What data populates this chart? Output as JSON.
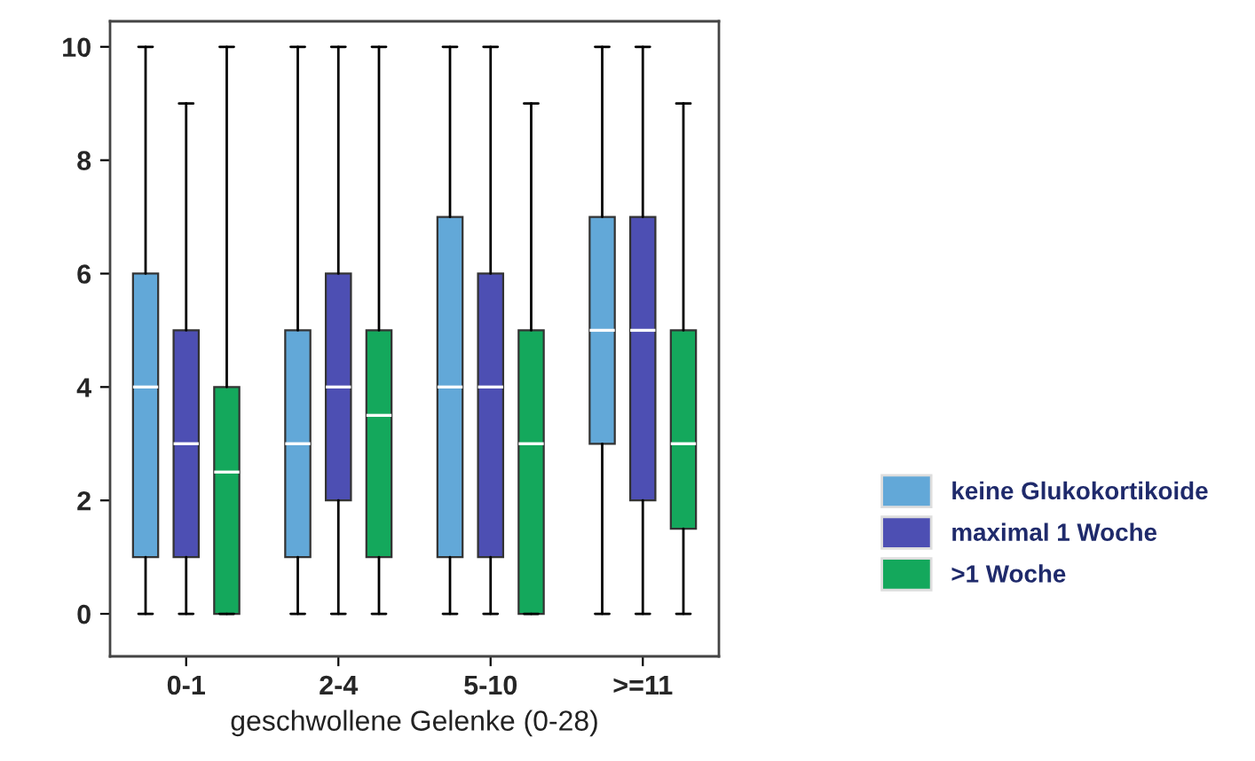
{
  "chart_data": {
    "type": "box",
    "xlabel": "geschwollene Gelenke (0-28)",
    "categories": [
      "0-1",
      "2-4",
      "5-10",
      ">=11"
    ],
    "ylim": [
      -0.75,
      10.45
    ],
    "yticks": [
      0,
      2,
      4,
      6,
      8,
      10
    ],
    "legend": "right",
    "grid": false,
    "series": [
      {
        "name": "keine Glukokortikoide",
        "color": "#62a8d8",
        "boxes": [
          {
            "low": 0,
            "q1": 1,
            "median": 4,
            "q3": 6,
            "high": 10
          },
          {
            "low": 0,
            "q1": 1,
            "median": 3,
            "q3": 5,
            "high": 10
          },
          {
            "low": 0,
            "q1": 1,
            "median": 4,
            "q3": 7,
            "high": 10
          },
          {
            "low": 0,
            "q1": 3,
            "median": 5,
            "q3": 7,
            "high": 10
          }
        ]
      },
      {
        "name": "maximal 1 Woche",
        "color": "#4d4fb3",
        "boxes": [
          {
            "low": 0,
            "q1": 1,
            "median": 3,
            "q3": 5,
            "high": 9
          },
          {
            "low": 0,
            "q1": 2,
            "median": 4,
            "q3": 6,
            "high": 10
          },
          {
            "low": 0,
            "q1": 1,
            "median": 4,
            "q3": 6,
            "high": 10
          },
          {
            "low": 0,
            "q1": 2,
            "median": 5,
            "q3": 7,
            "high": 10
          }
        ]
      },
      {
        "name": ">1 Woche",
        "color": "#14a85c",
        "boxes": [
          {
            "low": 0,
            "q1": 0,
            "median": 2.5,
            "q3": 4,
            "high": 10
          },
          {
            "low": 0,
            "q1": 1,
            "median": 3.5,
            "q3": 5,
            "high": 10
          },
          {
            "low": 0,
            "q1": 0,
            "median": 3,
            "q3": 5,
            "high": 9
          },
          {
            "low": 0,
            "q1": 1.5,
            "median": 3,
            "q3": 5,
            "high": 9
          }
        ]
      }
    ]
  }
}
